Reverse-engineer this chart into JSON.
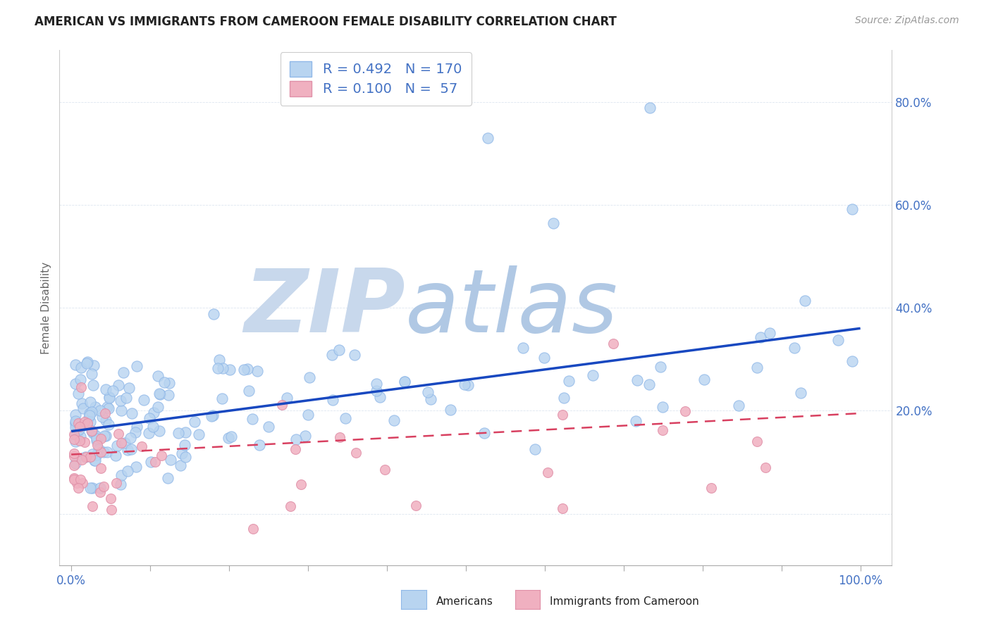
{
  "title": "AMERICAN VS IMMIGRANTS FROM CAMEROON FEMALE DISABILITY CORRELATION CHART",
  "source": "Source: ZipAtlas.com",
  "ylabel": "Female Disability",
  "color_american": "#b8d4f0",
  "color_american_edge": "#90b8e8",
  "color_immigrant": "#f0b0c0",
  "color_immigrant_edge": "#e090a8",
  "color_american_line": "#1848c0",
  "color_immigrant_line": "#d84060",
  "watermark_zip": "ZIP",
  "watermark_atlas": "atlas",
  "watermark_color_zip": "#c8d8ec",
  "watermark_color_atlas": "#b8cce0",
  "r_american": 0.492,
  "n_american": 170,
  "r_immigrant": 0.1,
  "n_immigrant": 57,
  "legend_label_american": "Americans",
  "legend_label_immigrant": "Immigrants from Cameroon",
  "tick_color": "#4472c4",
  "axis_label_color": "#666666",
  "grid_color": "#dde5f0",
  "title_color": "#222222",
  "source_color": "#999999",
  "seed_am": 77,
  "seed_im": 55
}
